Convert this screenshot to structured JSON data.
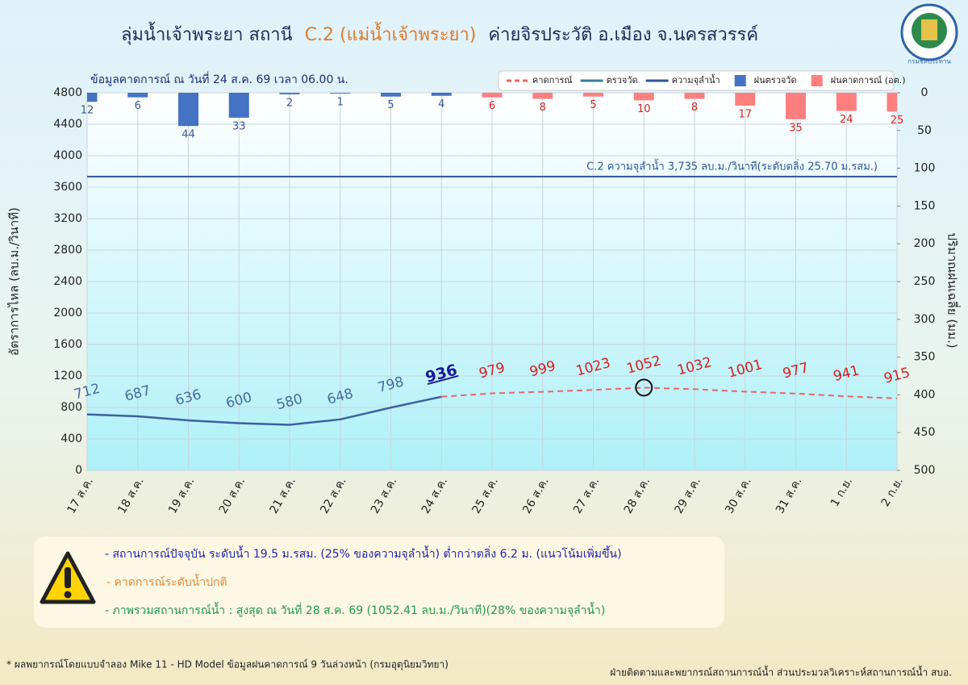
{
  "header": {
    "title_prefix": "ลุ่มน้ำเจ้าพระยา สถานี",
    "title_station": "C.2 (แม่น้ำเจ้าพระยา)",
    "title_suffix": "ค่ายจิรประวัติ อ.เมือง จ.นครสวรรค์",
    "logo_text": "กรมชลประทาน"
  },
  "chart_data": {
    "type": "line",
    "subtitle": "ข้อมูลคาดการณ์ ณ วันที่ 24 ส.ค. 69 เวลา 06.00 น.",
    "y_label": "อัตราการไหล (ลบ.ม./วินาที)",
    "y2_label": "ปริมาณฝนเฉลี่ย (มม.)",
    "categories": [
      "17 ส.ค.",
      "18 ส.ค.",
      "19 ส.ค.",
      "20 ส.ค.",
      "21 ส.ค.",
      "22 ส.ค.",
      "23 ส.ค.",
      "24 ส.ค.",
      "25 ส.ค.",
      "26 ส.ค.",
      "27 ส.ค.",
      "28 ส.ค.",
      "29 ส.ค.",
      "30 ส.ค.",
      "31 ส.ค.",
      "1 ก.ย.",
      "2 ก.ย."
    ],
    "ylim": [
      0,
      4800
    ],
    "yticks": [
      0,
      400,
      800,
      1200,
      1600,
      2000,
      2400,
      2800,
      3200,
      3600,
      4000,
      4400,
      4800
    ],
    "y2lim": [
      0,
      500
    ],
    "y2ticks": [
      0,
      50,
      100,
      150,
      200,
      250,
      300,
      350,
      400,
      450,
      500
    ],
    "y2_inverted": true,
    "grid": true,
    "series": [
      {
        "name": "คาดการณ์",
        "color": "#ef6464",
        "dashed": true,
        "values": [
          null,
          null,
          null,
          null,
          null,
          null,
          null,
          936,
          979,
          999,
          1023,
          1052,
          1032,
          1001,
          977,
          941,
          915
        ]
      },
      {
        "name": "ตรวจวัด",
        "color": "#3f5f9f",
        "legend_color": "#3b7d9c",
        "values": [
          712,
          687,
          636,
          600,
          580,
          648,
          798,
          936,
          null,
          null,
          null,
          null,
          null,
          null,
          null,
          null,
          null
        ]
      },
      {
        "name": "ฝนตรวจวัด",
        "type": "bar",
        "axis": "y2",
        "color": "#4472c4",
        "values": [
          12,
          6,
          44,
          33,
          2,
          1,
          5,
          4,
          null,
          null,
          null,
          null,
          null,
          null,
          null,
          null,
          null
        ]
      },
      {
        "name": "ฝนคาดการณ์ (อต.)",
        "type": "bar",
        "axis": "y2",
        "color": "#ff7f7f",
        "values": [
          null,
          null,
          null,
          null,
          null,
          null,
          null,
          null,
          6,
          8,
          5,
          10,
          8,
          17,
          35,
          24,
          25
        ]
      }
    ],
    "reference_line": {
      "name": "ความจุลำน้ำ",
      "value": 3735,
      "color": "#2f5597",
      "label": "C.2 ความจุลำน้ำ 3,735 ลบ.ม./วินาที(ระดับตลิ่ง 25.70 ม.รสม.)"
    },
    "highlight_index": 11
  },
  "info": {
    "lines": [
      "- สถานการณ์ปัจจุบัน ระดับน้ำ 19.5 ม.รสม. (25% ของความจุลำน้ำ) ต่ำกว่าตลิ่ง 6.2 ม. (แนวโน้มเพิ่มขึ้น)",
      "- คาดการณ์ระดับน้ำปกติ",
      "- ภาพรวมสถานการณ์น้ำ : สูงสุด ณ วันที่ 28 ส.ค. 69 (1052.41 ลบ.ม./วินาที)(28% ของความจุลำน้ำ)"
    ]
  },
  "footer": {
    "left": "* ผลพยากรณ์โดยแบบจำลอง Mike 11 - HD Model  ข้อมูลฝนคาดการณ์ 9 วันล่วงหน้า (กรมอุตุนิยมวิทยา)",
    "right": "ฝ่ายติดตามและพยากรณ์สถานการณ์น้ำ ส่วนประมวลวิเคราะห์สถานการณ์น้ำ สบอ."
  }
}
